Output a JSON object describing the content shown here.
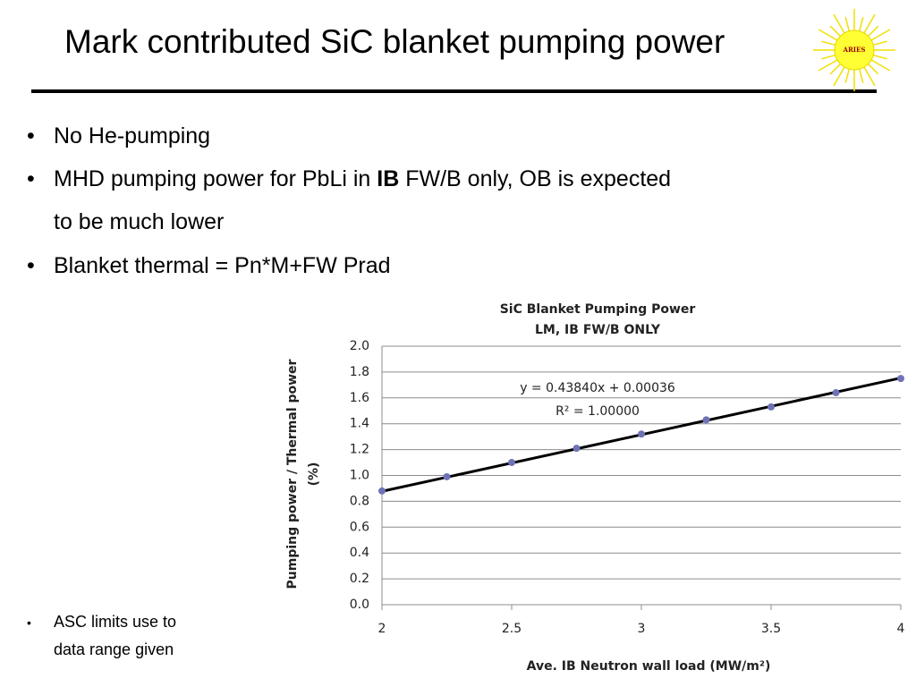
{
  "slide": {
    "title": "Mark contributed SiC blanket pumping power",
    "logo": "ARIES",
    "bullets": [
      [
        "No He-pumping"
      ],
      [
        "MHD pumping power for PbLi in ",
        "IB",
        " FW/B only, OB is expected",
        "to be much lower"
      ],
      [
        "Blanket thermal = Pn*M+FW Prad"
      ]
    ],
    "note": [
      "ASC limits use to",
      "data range given"
    ]
  },
  "chart_data": {
    "type": "scatter",
    "title": [
      "SiC Blanket Pumping Power",
      "LM, IB FW/B ONLY"
    ],
    "xlabel": "Ave. IB Neutron wall load (MW/m²)",
    "ylabel": [
      "Pumping power / Thermal power",
      "(%)"
    ],
    "annotations": [
      "y = 0.43840x + 0.00036",
      "R² = 1.00000"
    ],
    "x": [
      2,
      2.25,
      2.5,
      2.75,
      3,
      3.25,
      3.5,
      3.75,
      4
    ],
    "series": [
      {
        "color": "#6f73b6",
        "values": [
          0.88,
          0.99,
          1.1,
          1.21,
          1.32,
          1.43,
          1.53,
          1.64,
          1.75
        ]
      }
    ],
    "trendline": {
      "color": "#000000",
      "x": [
        2,
        4
      ],
      "values": [
        0.877,
        1.754
      ]
    },
    "xlim": [
      2,
      4
    ],
    "xticks": [
      2,
      2.5,
      3,
      3.5,
      4
    ],
    "ylim": [
      0,
      2
    ],
    "yticks": [
      {
        "value": 0,
        "label": "0.0"
      },
      0.2,
      0.4,
      0.6,
      0.8,
      {
        "value": 1,
        "label": "1.0"
      },
      1.2,
      1.4,
      1.6,
      1.8,
      {
        "value": 2,
        "label": "2.0"
      }
    ],
    "grid": true
  }
}
